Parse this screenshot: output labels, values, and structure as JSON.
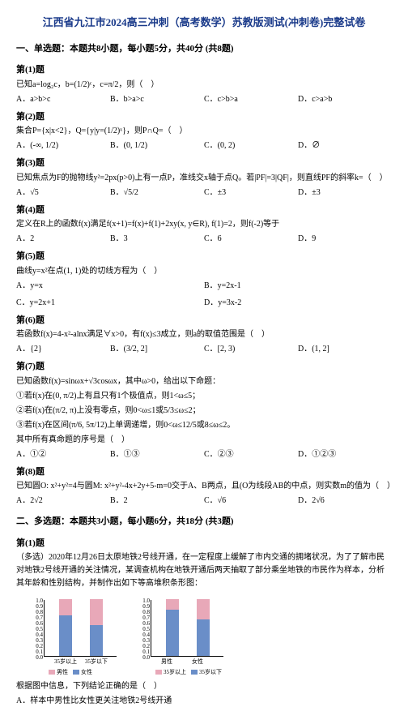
{
  "title": "江西省九江市2024高三冲刺（高考数学）苏教版测试(冲刺卷)完整试卷",
  "section1": "一、单选题：本题共8小题，每小题5分，共40分 (共8题)",
  "q1": {
    "num": "第(1)题",
    "text": "已知a=log₂c，b=(1/2)ᶜ，c=π/2，则（　）",
    "a": "A．a>b>c",
    "b": "B．b>a>c",
    "c": "C．c>b>a",
    "d": "D．c>a>b"
  },
  "q2": {
    "num": "第(2)题",
    "text": "集合P={x|x<2}，Q={y|y=(1/2)ˣ}，则P∩Q=（　）",
    "a": "A．(-∞, 1/2)",
    "b": "B．(0, 1/2)",
    "c": "C．(0, 2)",
    "d": "D．∅"
  },
  "q3": {
    "num": "第(3)题",
    "text": "已知焦点为F的抛物线y²=2px(p>0)上有一点P，准线交x轴于点Q。若|PF|=3|QF|，则直线PF的斜率k=（　）",
    "a": "A．√5",
    "b": "B．√5/2",
    "c": "C．±3",
    "d": "D．±3"
  },
  "q4": {
    "num": "第(4)题",
    "text": "定义在R上的函数f(x)满足f(x+1)=f(x)+f(1)+2xy(x, y∈R), f(1)=2，则f(-2)等于",
    "a": "A．2",
    "b": "B．3",
    "c": "C．6",
    "d": "D．9"
  },
  "q5": {
    "num": "第(5)题",
    "text": "曲线y=x²在点(1, 1)处的切线方程为（　）",
    "a": "A．y=x",
    "b": "B．y=2x-1",
    "c": "C．y=2x+1",
    "d": "D．y=3x-2"
  },
  "q6": {
    "num": "第(6)题",
    "text": "若函数f(x)=4-x²-alnx满足∀x>0，有f(x)≤3成立，则a的取值范围是（　）",
    "a": "A．{2}",
    "b": "B．(3/2, 2]",
    "c": "C．[2, 3)",
    "d": "D．(1, 2]"
  },
  "q7": {
    "num": "第(7)题",
    "text": "已知函数f(x)=sinωx+√3cosωx，其中ω>0，给出以下命题：",
    "l1": "①若f(x)在(0, π/2)上有且只有1个极值点，则1<ω≤5；",
    "l2": "②若f(x)在(π/2, π)上没有零点，则0<ω≤1或5/3≤ω≤2；",
    "l3": "③若f(x)在区间(π/6, 5π/12)上单调递增，则0<ω≤12/5或8≤ω≤2。",
    "l4": "其中所有真命题的序号是（　）",
    "a": "A．①②",
    "b": "B．①③",
    "c": "C．②③",
    "d": "D．①②③"
  },
  "q8": {
    "num": "第(8)题",
    "text": "已知圆O: x²+y²=4与圆M: x²+y²-4x+2y+5-m=0交于A、B两点，且(O为线段AB的中点，则实数m的值为（　）",
    "a": "A．2√2",
    "b": "B．2",
    "c": "C．√6",
    "d": "D．2√6"
  },
  "section2": "二、多选题：本题共3小题，每小题6分，共18分 (共3题)",
  "q2_1": {
    "num": "第(1)题",
    "text": "（多选）2020年12月26日太原地铁2号线开通，在一定程度上缓解了市内交通的拥堵状况，为了了解市民对地铁2号线开通的关注情况，某调查机构在地铁开通后两天抽取了部分乘坐地铁的市民作为样本，分析其年龄和性别结构，并制作出如下等高堆积条形图：",
    "after": "根据图中信息，下列结论正确的是（　）",
    "opta": "A．样本中男性比女性更关注地铁2号线开通"
  },
  "chart1": {
    "yticks": [
      "0.0",
      "0.1",
      "0.2",
      "0.3",
      "0.4",
      "0.5",
      "0.6",
      "0.7",
      "0.8",
      "0.9",
      "1.0"
    ],
    "bars": [
      {
        "x": 18,
        "h_pink": 0.28,
        "h_blue": 0.72,
        "label": "35岁以上"
      },
      {
        "x": 56,
        "h_pink": 0.45,
        "h_blue": 0.55,
        "label": "35岁以下"
      }
    ],
    "legend": [
      "男性",
      "女性"
    ],
    "colors": {
      "pink": "#e8a8b8",
      "blue": "#6a8ec8"
    }
  },
  "chart2": {
    "yticks": [
      "0.0",
      "0.1",
      "0.2",
      "0.3",
      "0.4",
      "0.5",
      "0.6",
      "0.7",
      "0.8",
      "0.9",
      "1.0"
    ],
    "bars": [
      {
        "x": 18,
        "h_pink": 0.18,
        "h_blue": 0.82,
        "label": "男性"
      },
      {
        "x": 56,
        "h_pink": 0.35,
        "h_blue": 0.65,
        "label": "女性"
      }
    ],
    "legend": [
      "35岁以上",
      "35岁以下"
    ],
    "colors": {
      "pink": "#e8a8b8",
      "blue": "#6a8ec8"
    }
  }
}
